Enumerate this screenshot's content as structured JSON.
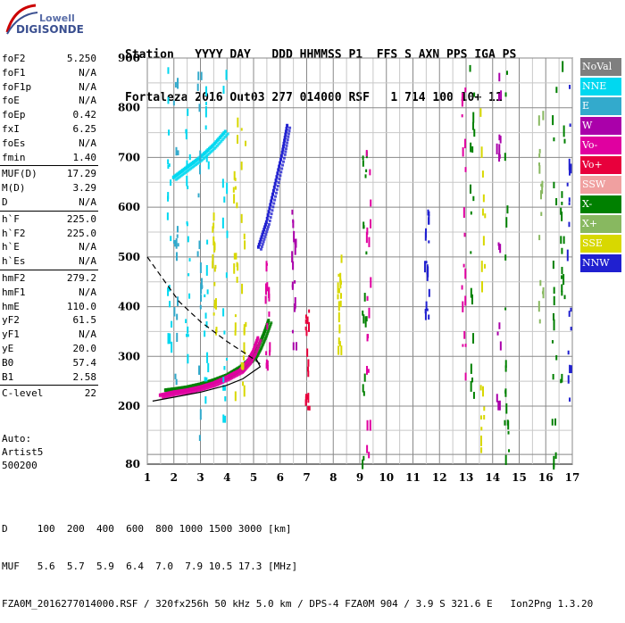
{
  "logo": {
    "line1": "Lowell",
    "line2": "DIGISONDE"
  },
  "header": {
    "line1": "Station   YYYY DAY   DDD HHMMSS P1  FFS S AXN PPS IGA PS",
    "line2": "Fortaleza 2016 Out03 277 014000 RSF   1 714 100 10+ 11"
  },
  "params": [
    {
      "label": "foF2",
      "value": "5.250"
    },
    {
      "label": "foF1",
      "value": "N/A"
    },
    {
      "label": "foF1p",
      "value": "N/A"
    },
    {
      "label": "foE",
      "value": "N/A"
    },
    {
      "label": "foEp",
      "value": "0.42"
    },
    {
      "label": "fxI",
      "value": "6.25"
    },
    {
      "label": "foEs",
      "value": "N/A"
    },
    {
      "label": "fmin",
      "value": "1.40"
    },
    {
      "label": "MUF(D)",
      "value": "17.29"
    },
    {
      "label": "M(D)",
      "value": "3.29"
    },
    {
      "label": "D",
      "value": "N/A"
    },
    {
      "label": "h`F",
      "value": "225.0"
    },
    {
      "label": "h`F2",
      "value": "225.0"
    },
    {
      "label": "h`E",
      "value": "N/A"
    },
    {
      "label": "h`Es",
      "value": "N/A"
    },
    {
      "label": "hmF2",
      "value": "279.2"
    },
    {
      "label": "hmF1",
      "value": "N/A"
    },
    {
      "label": "hmE",
      "value": "110.0"
    },
    {
      "label": "yF2",
      "value": "61.5"
    },
    {
      "label": "yF1",
      "value": "N/A"
    },
    {
      "label": "yE",
      "value": "20.0"
    },
    {
      "label": "B0",
      "value": "57.4"
    },
    {
      "label": "B1",
      "value": "2.58"
    },
    {
      "label": "C-level",
      "value": "22"
    }
  ],
  "extra": {
    "auto": "Auto:",
    "artist": "Artist5",
    "code": "500200"
  },
  "legend": [
    {
      "label": "NoVal",
      "color": "#7f7f7f"
    },
    {
      "label": "NNE",
      "color": "#00d8f0"
    },
    {
      "label": "E",
      "color": "#33aacc"
    },
    {
      "label": "W",
      "color": "#aa00aa"
    },
    {
      "label": "Vo-",
      "color": "#e000a0"
    },
    {
      "label": "Vo+",
      "color": "#e8003c"
    },
    {
      "label": "SSW",
      "color": "#f0a0a0"
    },
    {
      "label": "X-",
      "color": "#008000"
    },
    {
      "label": "X+",
      "color": "#88b860"
    },
    {
      "label": "SSE",
      "color": "#d8d800"
    },
    {
      "label": "NNW",
      "color": "#2020d0"
    }
  ],
  "chart_data": {
    "type": "scatter",
    "xlim": [
      1,
      17
    ],
    "ylim": [
      80,
      900
    ],
    "x_ticks": [
      "1",
      "2",
      "3",
      "4",
      "5",
      "6",
      "7",
      "8",
      "9",
      "10",
      "11",
      "12",
      "13",
      "14",
      "15",
      "16",
      "17"
    ],
    "y_ticks": [
      "900",
      "800",
      "700",
      "600",
      "500",
      "400",
      "300",
      "200",
      "80"
    ],
    "grid": true,
    "series": [
      {
        "name": "X-",
        "color": "#008000",
        "points": [
          [
            1.7,
            232
          ],
          [
            2.0,
            234
          ],
          [
            2.5,
            238
          ],
          [
            3.0,
            244
          ],
          [
            3.5,
            252
          ],
          [
            4.0,
            262
          ],
          [
            4.5,
            278
          ],
          [
            5.0,
            300
          ],
          [
            5.2,
            320
          ],
          [
            5.4,
            345
          ],
          [
            5.6,
            375
          ]
        ]
      },
      {
        "name": "Vo-",
        "color": "#e000a0",
        "points": [
          [
            1.5,
            222
          ],
          [
            2.0,
            228
          ],
          [
            2.5,
            232
          ],
          [
            3.0,
            238
          ],
          [
            3.5,
            246
          ],
          [
            4.0,
            258
          ],
          [
            4.5,
            272
          ],
          [
            4.8,
            290
          ],
          [
            5.0,
            310
          ],
          [
            5.2,
            340
          ]
        ]
      },
      {
        "name": "NNW",
        "color": "#2020d0",
        "points": [
          [
            5.2,
            520
          ],
          [
            5.5,
            570
          ],
          [
            5.8,
            640
          ],
          [
            6.1,
            710
          ],
          [
            6.3,
            770
          ]
        ]
      },
      {
        "name": "NNE",
        "color": "#00d8f0",
        "points": [
          [
            2.0,
            660
          ],
          [
            2.5,
            680
          ],
          [
            3.0,
            700
          ],
          [
            3.5,
            725
          ],
          [
            4.0,
            755
          ]
        ]
      }
    ],
    "profile_line": [
      [
        1.2,
        210
      ],
      [
        2.0,
        218
      ],
      [
        3.0,
        228
      ],
      [
        4.0,
        242
      ],
      [
        4.6,
        255
      ],
      [
        5.0,
        270
      ],
      [
        5.25,
        279.2
      ],
      [
        5.1,
        295
      ]
    ],
    "dashed_line": [
      [
        1.0,
        500
      ],
      [
        1.6,
        455
      ],
      [
        2.2,
        410
      ],
      [
        3.0,
        370
      ],
      [
        4.0,
        330
      ],
      [
        5.0,
        295
      ],
      [
        5.3,
        283
      ]
    ]
  },
  "bottom": {
    "line1": "D     100  200  400  600  800 1000 1500 3000 [km]",
    "line2": "MUF   5.6  5.7  5.9  6.4  7.0  7.9 10.5 17.3 [MHz]",
    "line3": "FZA0M_2016277014000.RSF / 320fx256h 50 kHz 5.0 km / DPS-4 FZA0M 904 / 3.9 S 321.6 E   Ion2Png 1.3.20"
  }
}
